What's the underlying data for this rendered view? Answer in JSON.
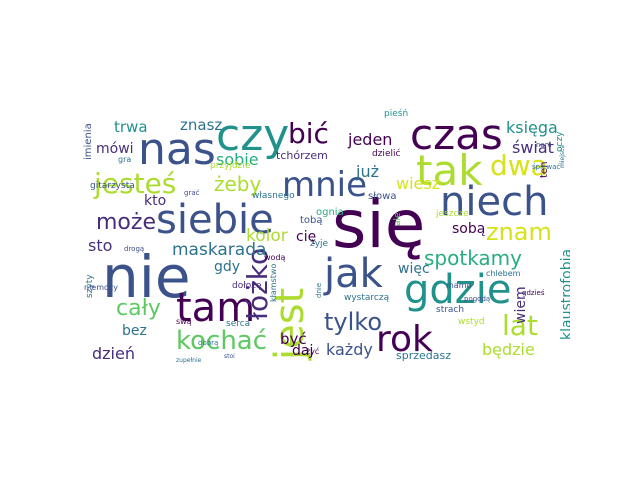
{
  "cloud": {
    "palette": {
      "purple": "#440154",
      "indigo": "#472d7b",
      "blue": "#3b528b",
      "steel": "#2c728e",
      "teal": "#21918c",
      "green": "#28ae80",
      "lime": "#5ec962",
      "yellowgreen": "#addc30",
      "yellow": "#d8e219"
    },
    "words": [
      {
        "text": "się",
        "color": "#440154"
      },
      {
        "text": "nie",
        "color": "#3b528b"
      },
      {
        "text": "czy",
        "color": "#21918c"
      },
      {
        "text": "nas",
        "color": "#3b528b"
      },
      {
        "text": "czas",
        "color": "#440154"
      },
      {
        "text": "tak",
        "color": "#addc30"
      },
      {
        "text": "siebie",
        "color": "#3b528b"
      },
      {
        "text": "niech",
        "color": "#3b528b"
      },
      {
        "text": "jak",
        "color": "#3b528b"
      },
      {
        "text": "gdzie",
        "color": "#21918c"
      },
      {
        "text": "tam",
        "color": "#440154"
      },
      {
        "text": "jest",
        "color": "#addc30"
      },
      {
        "text": "rok",
        "color": "#440154"
      },
      {
        "text": "mnie",
        "color": "#3b528b"
      },
      {
        "text": "jesteś",
        "color": "#addc30"
      },
      {
        "text": "łóżko",
        "color": "#472d7b"
      },
      {
        "text": "bić",
        "color": "#440154"
      },
      {
        "text": "dwa",
        "color": "#d8e219"
      },
      {
        "text": "lat",
        "color": "#addc30"
      },
      {
        "text": "kochać",
        "color": "#5ec962"
      },
      {
        "text": "cały",
        "color": "#5ec962"
      },
      {
        "text": "tylko",
        "color": "#3b528b"
      },
      {
        "text": "znam",
        "color": "#d8e219"
      },
      {
        "text": "może",
        "color": "#472d7b"
      },
      {
        "text": "spotkamy",
        "color": "#28ae80"
      },
      {
        "text": "żeby",
        "color": "#addc30"
      },
      {
        "text": "maskarada",
        "color": "#2c728e"
      },
      {
        "text": "kolor",
        "color": "#addc30"
      },
      {
        "text": "już",
        "color": "#2c728e"
      },
      {
        "text": "wiesz",
        "color": "#d8e219"
      },
      {
        "text": "jeden",
        "color": "#440154"
      },
      {
        "text": "sobie",
        "color": "#28ae80"
      },
      {
        "text": "znasz",
        "color": "#2c728e"
      },
      {
        "text": "trwa",
        "color": "#21918c"
      },
      {
        "text": "księga",
        "color": "#21918c"
      },
      {
        "text": "świat",
        "color": "#472d7b"
      },
      {
        "text": "mówi",
        "color": "#472d7b"
      },
      {
        "text": "sto",
        "color": "#472d7b"
      },
      {
        "text": "kto",
        "color": "#472d7b"
      },
      {
        "text": "gdy",
        "color": "#2c728e"
      },
      {
        "text": "daj",
        "color": "#440154"
      },
      {
        "text": "cię",
        "color": "#440154"
      },
      {
        "text": "sobą",
        "color": "#440154"
      },
      {
        "text": "więc",
        "color": "#2c728e"
      },
      {
        "text": "wiem",
        "color": "#472d7b"
      },
      {
        "text": "klaustrofobia",
        "color": "#21918c"
      },
      {
        "text": "bez",
        "color": "#2c728e"
      },
      {
        "text": "dzień",
        "color": "#472d7b"
      },
      {
        "text": "być",
        "color": "#440154"
      },
      {
        "text": "każdy",
        "color": "#3b528b"
      },
      {
        "text": "będzie",
        "color": "#addc30"
      },
      {
        "text": "sprzedasz",
        "color": "#2c728e"
      },
      {
        "text": "tchórzem",
        "color": "#472d7b"
      },
      {
        "text": "imienia",
        "color": "#3b528b"
      },
      {
        "text": "pieśń",
        "color": "#21918c"
      },
      {
        "text": "dzielić",
        "color": "#440154"
      },
      {
        "text": "oczy",
        "color": "#21918c"
      },
      {
        "text": "ten",
        "color": "#440154"
      },
      {
        "text": "słowa",
        "color": "#3b528b"
      },
      {
        "text": "ognia",
        "color": "#28ae80"
      },
      {
        "text": "tobą",
        "color": "#3b528b"
      },
      {
        "text": "żyje",
        "color": "#2c728e"
      },
      {
        "text": "jeszcze",
        "color": "#addc30"
      },
      {
        "text": "ale",
        "color": "#5ec962"
      },
      {
        "text": "gitarzysta",
        "color": "#3b528b"
      },
      {
        "text": "przyjdzie",
        "color": "#addc30"
      },
      {
        "text": "własnego",
        "color": "#2c728e"
      },
      {
        "text": "gra",
        "color": "#2c728e"
      },
      {
        "text": "grać",
        "color": "#3b528b"
      },
      {
        "text": "śpiewać",
        "color": "#2c728e"
      },
      {
        "text": "szyty",
        "color": "#2c728e"
      },
      {
        "text": "drogą",
        "color": "#3b528b"
      },
      {
        "text": "wodą",
        "color": "#440154"
      },
      {
        "text": "kłamstwo",
        "color": "#2c728e"
      },
      {
        "text": "dołożę",
        "color": "#472d7b"
      },
      {
        "text": "niemocy",
        "color": "#3b528b"
      },
      {
        "text": "swą",
        "color": "#440154"
      },
      {
        "text": "serca",
        "color": "#2c728e"
      },
      {
        "text": "wystarczą",
        "color": "#2c728e"
      },
      {
        "text": "strach",
        "color": "#3b528b"
      },
      {
        "text": "wstyd",
        "color": "#addc30"
      },
      {
        "text": "pogodą",
        "color": "#3b528b"
      },
      {
        "text": "gdzieś",
        "color": "#440154"
      },
      {
        "text": "mamo",
        "color": "#3b528b"
      },
      {
        "text": "chlebem",
        "color": "#2c728e"
      },
      {
        "text": "nam",
        "color": "#3b528b"
      },
      {
        "text": "zupełnie",
        "color": "#2c728e"
      },
      {
        "text": "dobrą",
        "color": "#2c728e"
      },
      {
        "text": "żyć",
        "color": "#440154"
      },
      {
        "text": "stoi",
        "color": "#3b528b"
      },
      {
        "text": "dnie",
        "color": "#2c728e"
      },
      {
        "text": "miejsca",
        "color": "#2c728e"
      }
    ]
  }
}
